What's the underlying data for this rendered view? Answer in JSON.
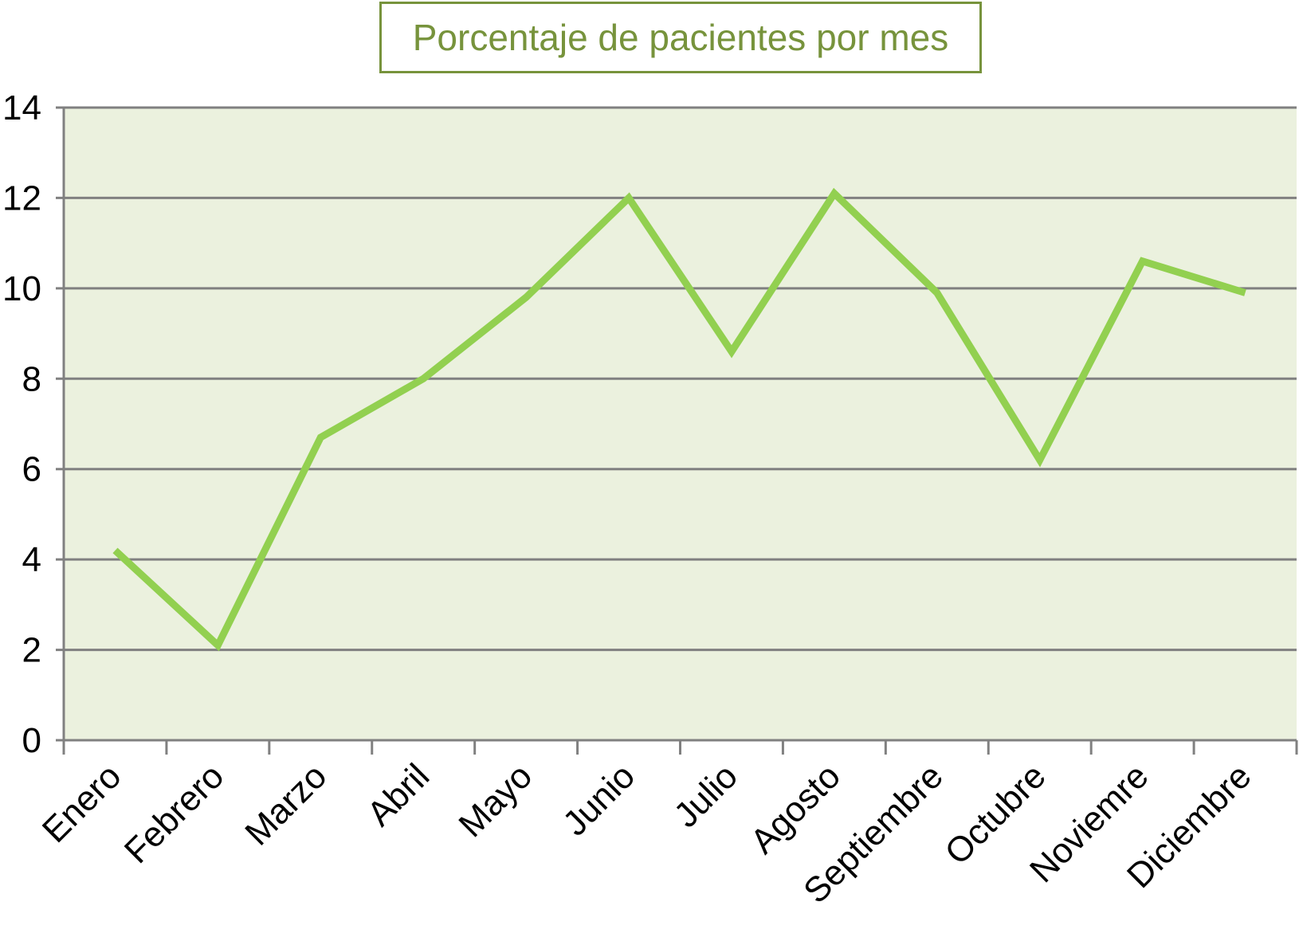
{
  "chart_data": {
    "type": "line",
    "title": "Porcentaje de pacientes por mes",
    "xlabel": "",
    "ylabel": "",
    "categories": [
      "Enero",
      "Febrero",
      "Marzo",
      "Abril",
      "Mayo",
      "Junio",
      "Julio",
      "Agosto",
      "Septiembre",
      "Octubre",
      "Noviemre",
      "Diciembre"
    ],
    "series": [
      {
        "values": [
          4.2,
          2.1,
          6.7,
          8.0,
          9.8,
          12.0,
          8.6,
          12.1,
          9.9,
          6.2,
          10.6,
          9.9
        ]
      }
    ],
    "ylim": [
      0,
      14
    ],
    "yticks": [
      "0",
      "2",
      "4",
      "6",
      "8",
      "10",
      "12",
      "14"
    ],
    "grid": true,
    "colors": {
      "line": "#92d050",
      "plot_background": "#ebf1de",
      "title": "#77933c",
      "gridline": "#808080"
    }
  }
}
